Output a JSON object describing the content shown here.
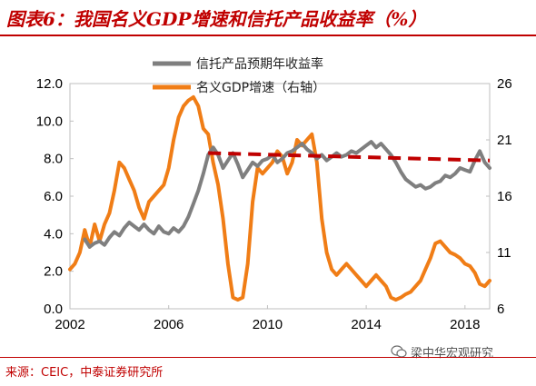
{
  "title": "图表6：我国名义GDP增速和信托产品收益率（%）",
  "source": "来源：CEIC，中泰证券研究所",
  "watermark": "梁中华宏观研究",
  "chart_data": {
    "type": "line",
    "x_ticks": [
      "2002",
      "2006",
      "2010",
      "2014",
      "2018"
    ],
    "xlim": [
      2002,
      2019.0
    ],
    "ylim_left": [
      0,
      12
    ],
    "ylim_right": [
      6,
      26
    ],
    "left_ticks": [
      "0.0",
      "2.0",
      "4.0",
      "6.0",
      "8.0",
      "10.0",
      "12.0"
    ],
    "right_ticks": [
      "6",
      "11",
      "16",
      "21",
      "26"
    ],
    "colors": {
      "trust": "#7f7f7f",
      "gdp": "#f07d16",
      "avg": "#c00000"
    },
    "series": [
      {
        "name": "信托产品预期年收益率",
        "axis": "left",
        "x": [
          2002.6,
          2002.8,
          2003.0,
          2003.2,
          2003.4,
          2003.6,
          2003.8,
          2004.0,
          2004.2,
          2004.4,
          2004.6,
          2004.8,
          2005.0,
          2005.2,
          2005.4,
          2005.6,
          2005.8,
          2006.0,
          2006.2,
          2006.4,
          2006.6,
          2006.8,
          2007.0,
          2007.2,
          2007.4,
          2007.6,
          2007.8,
          2008.0,
          2008.2,
          2008.4,
          2008.6,
          2008.8,
          2009.0,
          2009.2,
          2009.4,
          2009.6,
          2009.8,
          2010.0,
          2010.2,
          2010.4,
          2010.6,
          2010.8,
          2011.0,
          2011.2,
          2011.4,
          2011.6,
          2011.8,
          2012.0,
          2012.2,
          2012.4,
          2012.6,
          2012.8,
          2013.0,
          2013.2,
          2013.4,
          2013.6,
          2013.8,
          2014.0,
          2014.2,
          2014.4,
          2014.6,
          2014.8,
          2015.0,
          2015.2,
          2015.4,
          2015.6,
          2015.8,
          2016.0,
          2016.2,
          2016.4,
          2016.6,
          2016.8,
          2017.0,
          2017.2,
          2017.4,
          2017.6,
          2017.8,
          2018.0,
          2018.2,
          2018.4,
          2018.6,
          2018.8,
          2019.0
        ],
        "values": [
          3.7,
          3.3,
          3.5,
          3.6,
          3.4,
          3.8,
          4.1,
          3.9,
          4.3,
          4.6,
          4.4,
          4.2,
          4.5,
          4.2,
          4.0,
          4.4,
          4.1,
          4.0,
          4.3,
          4.1,
          4.4,
          4.9,
          5.6,
          6.3,
          7.2,
          8.2,
          8.6,
          8.2,
          7.5,
          7.9,
          8.3,
          7.7,
          7.0,
          7.4,
          7.8,
          7.6,
          7.9,
          8.0,
          8.2,
          7.8,
          8.0,
          8.3,
          8.4,
          8.6,
          8.8,
          8.5,
          8.3,
          8.0,
          8.2,
          7.9,
          8.1,
          8.3,
          8.1,
          8.2,
          8.4,
          8.3,
          8.5,
          8.7,
          8.9,
          8.6,
          8.8,
          8.5,
          8.2,
          7.8,
          7.3,
          6.9,
          6.7,
          6.5,
          6.6,
          6.4,
          6.5,
          6.7,
          6.8,
          7.1,
          7.0,
          7.2,
          7.5,
          7.4,
          7.3,
          7.9,
          8.4,
          7.8,
          7.5
        ]
      },
      {
        "name": "名义GDP增速（右轴）",
        "axis": "right",
        "x": [
          2002.0,
          2002.2,
          2002.4,
          2002.6,
          2002.8,
          2003.0,
          2003.2,
          2003.4,
          2003.6,
          2003.8,
          2004.0,
          2004.2,
          2004.4,
          2004.6,
          2004.8,
          2005.0,
          2005.2,
          2005.4,
          2005.6,
          2005.8,
          2006.0,
          2006.2,
          2006.4,
          2006.6,
          2006.8,
          2007.0,
          2007.2,
          2007.4,
          2007.6,
          2007.8,
          2008.0,
          2008.2,
          2008.4,
          2008.6,
          2008.8,
          2009.0,
          2009.2,
          2009.4,
          2009.6,
          2009.8,
          2010.0,
          2010.2,
          2010.4,
          2010.6,
          2010.8,
          2011.0,
          2011.2,
          2011.4,
          2011.6,
          2011.8,
          2012.0,
          2012.2,
          2012.4,
          2012.6,
          2012.8,
          2013.0,
          2013.2,
          2013.4,
          2013.6,
          2013.8,
          2014.0,
          2014.2,
          2014.4,
          2014.6,
          2014.8,
          2015.0,
          2015.2,
          2015.4,
          2015.6,
          2015.8,
          2016.0,
          2016.2,
          2016.4,
          2016.6,
          2016.8,
          2017.0,
          2017.2,
          2017.4,
          2017.6,
          2017.8,
          2018.0,
          2018.2,
          2018.4,
          2018.6,
          2018.8,
          2019.0
        ],
        "values": [
          9.5,
          10.0,
          11.0,
          13.0,
          11.5,
          13.5,
          12.0,
          13.5,
          14.5,
          16.5,
          19.0,
          18.5,
          17.5,
          16.5,
          15.0,
          14.0,
          15.5,
          16.0,
          16.5,
          17.0,
          18.5,
          21.0,
          23.0,
          24.0,
          24.5,
          24.8,
          24.0,
          22.0,
          21.5,
          19.0,
          17.0,
          14.0,
          10.0,
          7.0,
          6.8,
          7.0,
          10.0,
          15.5,
          18.5,
          18.0,
          18.5,
          19.0,
          20.0,
          19.5,
          18.0,
          19.0,
          21.0,
          20.5,
          21.0,
          21.5,
          19.0,
          14.0,
          11.0,
          9.5,
          9.0,
          9.5,
          10.0,
          9.5,
          9.0,
          8.5,
          8.0,
          8.5,
          9.0,
          8.5,
          8.0,
          7.0,
          6.8,
          7.0,
          7.3,
          7.5,
          8.0,
          8.5,
          9.5,
          10.5,
          11.8,
          12.0,
          11.5,
          11.0,
          10.8,
          10.5,
          10.0,
          9.8,
          9.2,
          8.2,
          8.0,
          8.5
        ]
      },
      {
        "axis": "left",
        "style": "dashed",
        "x": [
          2007.6,
          2019.0
        ],
        "values": [
          8.3,
          7.9
        ]
      }
    ]
  }
}
